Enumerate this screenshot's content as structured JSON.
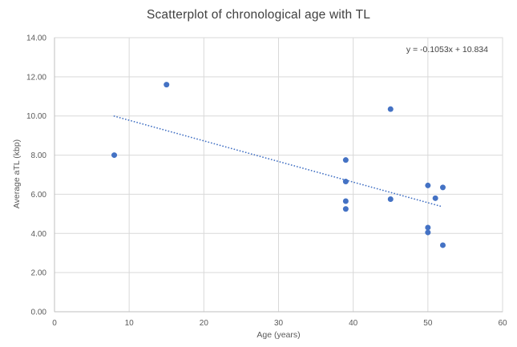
{
  "title": "Scatterplot of chronological age with TL",
  "equation_label": "y = -0.1053x + 10.834",
  "chart_data": {
    "type": "scatter",
    "title": "Scatterplot of chronological age with TL",
    "xlabel": "Age (years)",
    "ylabel": "Average aTL (kbp)",
    "xlim": [
      0,
      60
    ],
    "ylim": [
      0,
      14
    ],
    "grid": true,
    "legend": "none",
    "x_ticks": [
      0,
      10,
      20,
      30,
      40,
      50,
      60
    ],
    "x_tick_labels": [
      "0",
      "10",
      "20",
      "30",
      "40",
      "50",
      "60"
    ],
    "y_ticks": [
      0,
      2,
      4,
      6,
      8,
      10,
      12,
      14
    ],
    "y_tick_labels": [
      "0.00",
      "2.00",
      "4.00",
      "6.00",
      "8.00",
      "10.00",
      "12.00",
      "14.00"
    ],
    "points": [
      [
        8,
        8.0
      ],
      [
        15,
        11.6
      ],
      [
        39,
        7.75
      ],
      [
        39,
        6.65
      ],
      [
        39,
        5.65
      ],
      [
        39,
        5.25
      ],
      [
        45,
        10.35
      ],
      [
        45,
        5.75
      ],
      [
        50,
        6.45
      ],
      [
        50,
        4.3
      ],
      [
        50,
        4.05
      ],
      [
        51,
        5.8
      ],
      [
        52,
        6.35
      ],
      [
        52,
        3.4
      ]
    ],
    "trendline": {
      "equation": "y = -0.1053x + 10.834",
      "slope": -0.1053,
      "intercept": 10.834,
      "x_start": 8,
      "x_end": 52,
      "style": "dotted"
    },
    "colors": {
      "marker": "#4472C4",
      "trendline": "#4472C4",
      "gridline": "#D9D9D9",
      "axis_line": "#BFBFBF",
      "tick_text": "#595959",
      "title_text": "#404040"
    }
  }
}
